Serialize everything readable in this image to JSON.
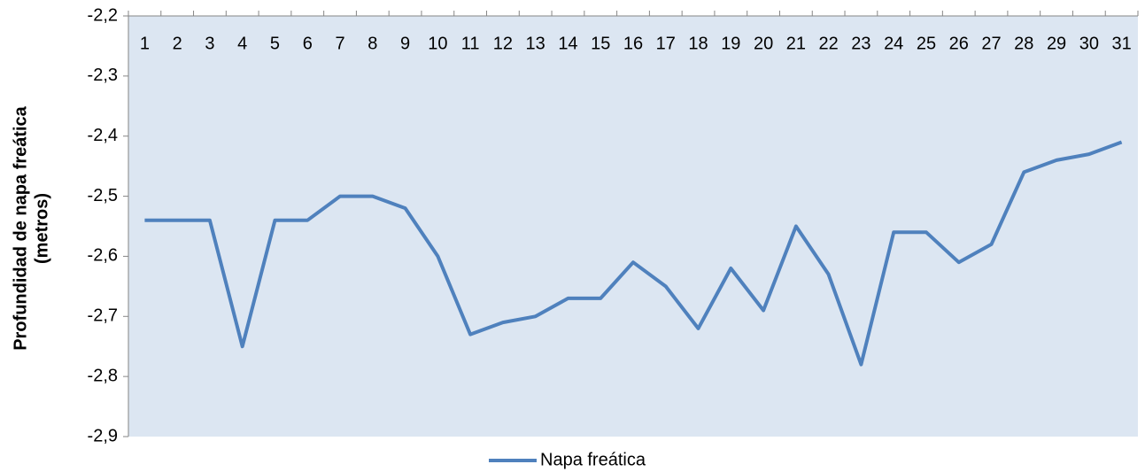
{
  "chart_data": {
    "type": "line",
    "ylabel": [
      "Profundidad de napa freática",
      "(metros)"
    ],
    "categories": [
      "1",
      "2",
      "3",
      "4",
      "5",
      "6",
      "7",
      "8",
      "9",
      "10",
      "11",
      "12",
      "13",
      "14",
      "15",
      "16",
      "17",
      "18",
      "19",
      "20",
      "21",
      "22",
      "23",
      "24",
      "25",
      "26",
      "27",
      "28",
      "29",
      "30",
      "31"
    ],
    "series": [
      {
        "name": "Napa freática",
        "color": "#4f81bd",
        "values": [
          -2.54,
          -2.54,
          -2.54,
          -2.75,
          -2.54,
          -2.54,
          -2.5,
          -2.5,
          -2.52,
          -2.6,
          -2.73,
          -2.71,
          -2.7,
          -2.67,
          -2.67,
          -2.61,
          -2.65,
          -2.72,
          -2.62,
          -2.69,
          -2.55,
          -2.63,
          -2.78,
          -2.56,
          -2.56,
          -2.61,
          -2.58,
          -2.46,
          -2.44,
          -2.43,
          -2.41
        ]
      }
    ],
    "ylim": [
      -2.9,
      -2.2
    ],
    "yticks": [
      {
        "value": -2.9,
        "label": "-2,9"
      },
      {
        "value": -2.8,
        "label": "-2,8"
      },
      {
        "value": -2.7,
        "label": "-2,7"
      },
      {
        "value": -2.6,
        "label": "-2,6"
      },
      {
        "value": -2.5,
        "label": "-2,5"
      },
      {
        "value": -2.4,
        "label": "-2,4"
      },
      {
        "value": -2.3,
        "label": "-2,3"
      },
      {
        "value": -2.2,
        "label": "-2,2"
      }
    ],
    "background": "#dce6f2",
    "legend": "bottom"
  }
}
